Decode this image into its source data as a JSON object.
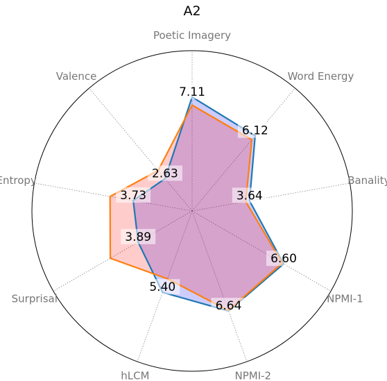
{
  "chart_data": {
    "type": "radar",
    "title": "A2",
    "axes": [
      "Poetic Imagery",
      "Word Energy",
      "Banality",
      "NPMI-1",
      "NPMI-2",
      "hLCM",
      "Surprisal",
      "Entropy",
      "Valence"
    ],
    "rlim": [
      0,
      10
    ],
    "grid": "spokes-only",
    "series": [
      {
        "color": "#1f77b4",
        "fill": "#0000ff",
        "values": [
          7.11,
          6.12,
          3.64,
          6.6,
          6.64,
          5.4,
          3.89,
          3.73,
          2.63
        ]
      },
      {
        "color": "#ff7f0e",
        "fill": "#ff0000",
        "values": [
          6.6,
          5.8,
          3.4,
          6.5,
          6.6,
          4.5,
          5.9,
          5.2,
          3.3
        ]
      }
    ],
    "data_labels": [
      "7.11",
      "6.12",
      "3.64",
      "6.60",
      "6.64",
      "5.40",
      "3.89",
      "3.73",
      "2.63"
    ]
  }
}
